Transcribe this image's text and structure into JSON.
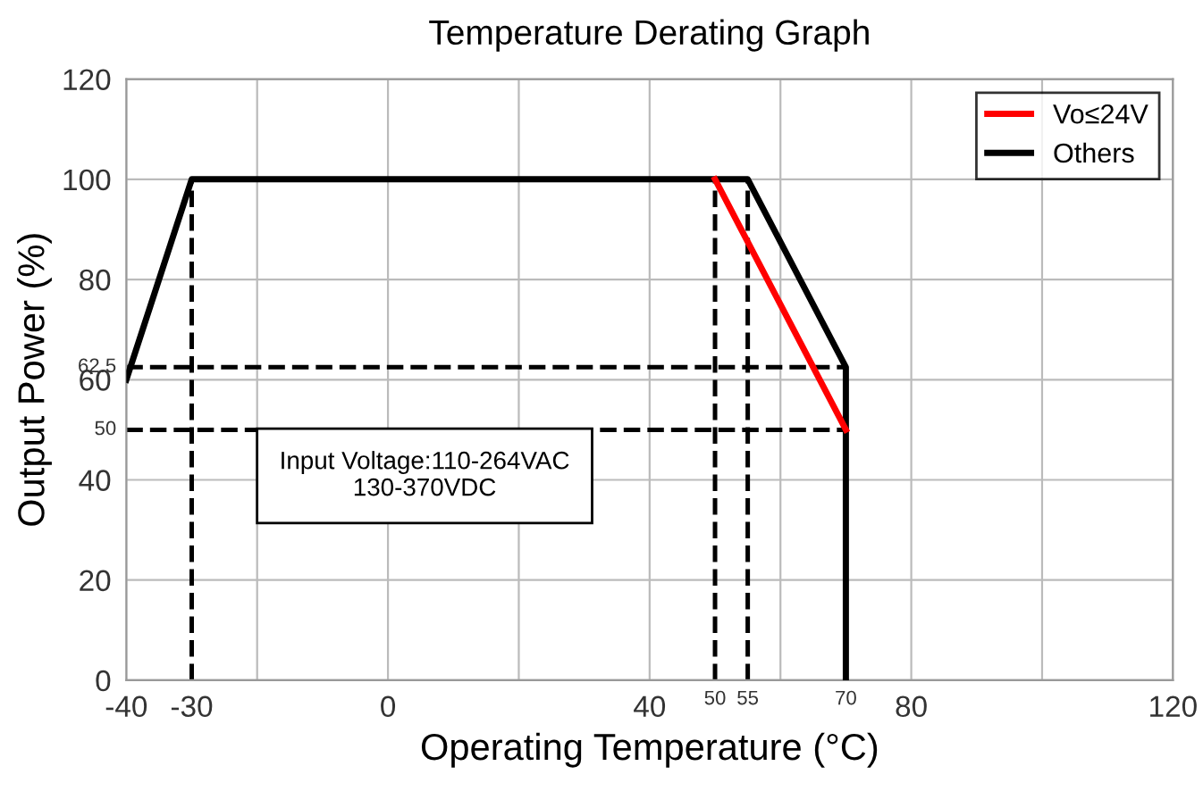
{
  "chart_data": {
    "type": "line",
    "title": "Temperature Derating Graph",
    "xlabel": "Operating Temperature (°C)",
    "ylabel": "Output Power (%)",
    "xlim": [
      -40,
      120
    ],
    "ylim": [
      0,
      120
    ],
    "xticks": [
      -40,
      -30,
      0,
      40,
      80,
      120
    ],
    "yticks": [
      0,
      20,
      40,
      60,
      80,
      100,
      120
    ],
    "grid": true,
    "legend": "top right",
    "marker": "none",
    "annotations": [
      "Input Voltage:110-264VAC\n130-370VDC",
      {
        "text": "50",
        "x": 50,
        "y": 0
      },
      {
        "text": "55",
        "x": 55,
        "y": 0
      },
      {
        "text": "70",
        "x": 70,
        "y": 0
      },
      {
        "text": "62.5",
        "x": -40,
        "y": 62.5
      },
      {
        "text": "50",
        "x": -40,
        "y": 50
      }
    ],
    "series": [
      {
        "name": "Others",
        "color": "#000000",
        "x": [
          -40,
          -30,
          55,
          70,
          70
        ],
        "values": [
          60,
          100,
          100,
          62.5,
          0
        ],
        "line_style": "solid"
      },
      {
        "name": "Vo≤24V",
        "color": "#ff0000",
        "x": [
          50,
          70
        ],
        "values": [
          100,
          50
        ],
        "line_style": "solid"
      },
      {
        "color": "#000000",
        "x": [
          -30,
          -30
        ],
        "values": [
          0,
          100
        ],
        "line_style": "dashed"
      },
      {
        "color": "#000000",
        "x": [
          50,
          50
        ],
        "values": [
          0,
          100
        ],
        "line_style": "dashed"
      },
      {
        "color": "#000000",
        "x": [
          55,
          55
        ],
        "values": [
          0,
          100
        ],
        "line_style": "dashed"
      },
      {
        "color": "#000000",
        "x": [
          -40,
          70
        ],
        "values": [
          62.5,
          62.5
        ],
        "line_style": "dashed"
      },
      {
        "color": "#000000",
        "x": [
          -40,
          70
        ],
        "values": [
          50,
          50
        ],
        "line_style": "dashed"
      }
    ]
  }
}
